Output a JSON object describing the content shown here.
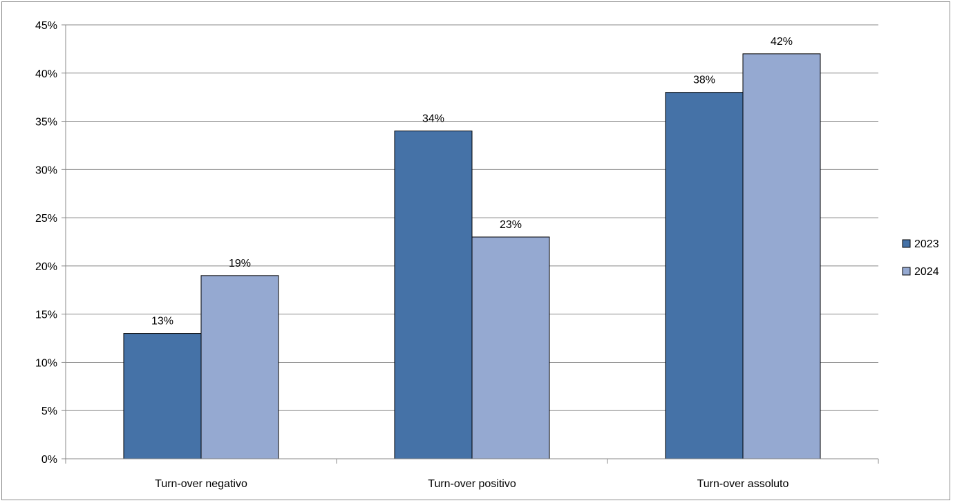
{
  "chart_data": {
    "type": "bar",
    "categories": [
      "Turn-over negativo",
      "Turn-over positivo",
      "Turn-over assoluto"
    ],
    "series": [
      {
        "name": "2023",
        "values": [
          13,
          34,
          38
        ],
        "color": "#4572a7",
        "labels": [
          "13%",
          "34%",
          "38%"
        ]
      },
      {
        "name": "2024",
        "values": [
          19,
          23,
          42
        ],
        "color": "#95a9d1",
        "labels": [
          "19%",
          "23%",
          "42%"
        ]
      }
    ],
    "ylim": [
      0,
      45
    ],
    "yticks": [
      0,
      5,
      10,
      15,
      20,
      25,
      30,
      35,
      40,
      45
    ],
    "ytick_labels": [
      "0%",
      "5%",
      "10%",
      "15%",
      "20%",
      "25%",
      "30%",
      "35%",
      "40%",
      "45%"
    ],
    "title": "",
    "xlabel": "",
    "ylabel": "",
    "grid": true,
    "legend_position": "right"
  }
}
